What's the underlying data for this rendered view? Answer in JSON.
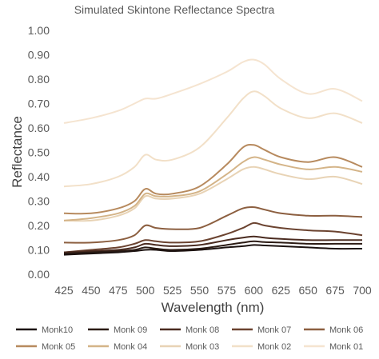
{
  "chart_data": {
    "type": "line",
    "title": "Simulated Skintone Reflectance Spectra",
    "xlabel": "Wavelength (nm)",
    "ylabel": "Reflectance",
    "xlim": [
      425,
      700
    ],
    "ylim": [
      0,
      1
    ],
    "x_ticks": [
      "425",
      "450",
      "475",
      "500",
      "525",
      "550",
      "575",
      "600",
      "625",
      "650",
      "675",
      "700"
    ],
    "y_ticks": [
      "0.00",
      "0.10",
      "0.20",
      "0.30",
      "0.40",
      "0.50",
      "0.60",
      "0.70",
      "0.80",
      "0.90",
      "1.00"
    ],
    "grid": false,
    "legend_position": "bottom",
    "x": [
      425,
      450,
      475,
      490,
      500,
      510,
      525,
      550,
      575,
      590,
      600,
      610,
      625,
      650,
      675,
      700
    ],
    "series": [
      {
        "name": "Monk10",
        "color": "#1c1210",
        "values": [
          0.08,
          0.085,
          0.09,
          0.095,
          0.1,
          0.1,
          0.095,
          0.1,
          0.11,
          0.115,
          0.12,
          0.118,
          0.115,
          0.11,
          0.105,
          0.105
        ]
      },
      {
        "name": "Monk 09",
        "color": "#2b1b14",
        "values": [
          0.085,
          0.09,
          0.095,
          0.1,
          0.11,
          0.105,
          0.1,
          0.105,
          0.12,
          0.13,
          0.135,
          0.132,
          0.13,
          0.125,
          0.125,
          0.125
        ]
      },
      {
        "name": "Monk 08",
        "color": "#4a2b20",
        "values": [
          0.09,
          0.095,
          0.1,
          0.11,
          0.125,
          0.12,
          0.115,
          0.12,
          0.14,
          0.15,
          0.155,
          0.15,
          0.145,
          0.14,
          0.14,
          0.14
        ]
      },
      {
        "name": "Monk 07",
        "color": "#6b4330",
        "values": [
          0.09,
          0.1,
          0.11,
          0.125,
          0.14,
          0.135,
          0.13,
          0.135,
          0.165,
          0.19,
          0.21,
          0.2,
          0.19,
          0.18,
          0.175,
          0.16
        ]
      },
      {
        "name": "Monk 06",
        "color": "#8c5f40",
        "values": [
          0.13,
          0.13,
          0.14,
          0.16,
          0.2,
          0.19,
          0.185,
          0.19,
          0.24,
          0.27,
          0.275,
          0.265,
          0.25,
          0.24,
          0.24,
          0.235
        ]
      },
      {
        "name": "Monk 05",
        "color": "#b78a5e",
        "values": [
          0.25,
          0.25,
          0.27,
          0.3,
          0.35,
          0.33,
          0.33,
          0.36,
          0.45,
          0.52,
          0.53,
          0.51,
          0.48,
          0.46,
          0.48,
          0.44
        ]
      },
      {
        "name": "Monk 04",
        "color": "#d4b488",
        "values": [
          0.22,
          0.23,
          0.25,
          0.28,
          0.33,
          0.32,
          0.32,
          0.34,
          0.41,
          0.46,
          0.48,
          0.47,
          0.45,
          0.43,
          0.44,
          0.42
        ]
      },
      {
        "name": "Monk 03",
        "color": "#e8d3b5",
        "values": [
          0.22,
          0.22,
          0.24,
          0.27,
          0.32,
          0.31,
          0.31,
          0.33,
          0.39,
          0.43,
          0.44,
          0.43,
          0.41,
          0.39,
          0.4,
          0.37
        ]
      },
      {
        "name": "Monk 02",
        "color": "#f2e0c8",
        "values": [
          0.36,
          0.37,
          0.4,
          0.44,
          0.49,
          0.47,
          0.47,
          0.52,
          0.64,
          0.72,
          0.75,
          0.73,
          0.68,
          0.64,
          0.66,
          0.62
        ]
      },
      {
        "name": "Monk 01",
        "color": "#f5e4d0",
        "values": [
          0.62,
          0.64,
          0.67,
          0.7,
          0.72,
          0.72,
          0.74,
          0.78,
          0.83,
          0.87,
          0.88,
          0.86,
          0.8,
          0.74,
          0.76,
          0.71
        ]
      }
    ]
  }
}
